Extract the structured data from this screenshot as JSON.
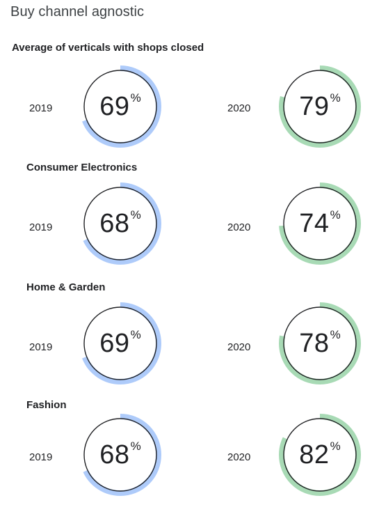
{
  "title": "Buy channel agnostic",
  "colors": {
    "2019": "#aecbfa",
    "2020": "#a8dab5",
    "outline": "#202124"
  },
  "chart_data": [
    {
      "type": "donut",
      "title": "Average of verticals with shops closed",
      "series": [
        {
          "name": "2019",
          "value": 69
        },
        {
          "name": "2020",
          "value": 79
        }
      ]
    },
    {
      "type": "donut",
      "title": "Consumer Electronics",
      "series": [
        {
          "name": "2019",
          "value": 68
        },
        {
          "name": "2020",
          "value": 74
        }
      ]
    },
    {
      "type": "donut",
      "title": "Home & Garden",
      "series": [
        {
          "name": "2019",
          "value": 69
        },
        {
          "name": "2020",
          "value": 78
        }
      ]
    },
    {
      "type": "donut",
      "title": "Fashion",
      "series": [
        {
          "name": "2019",
          "value": 68
        },
        {
          "name": "2020",
          "value": 82
        }
      ]
    }
  ],
  "percent_sign": "%"
}
